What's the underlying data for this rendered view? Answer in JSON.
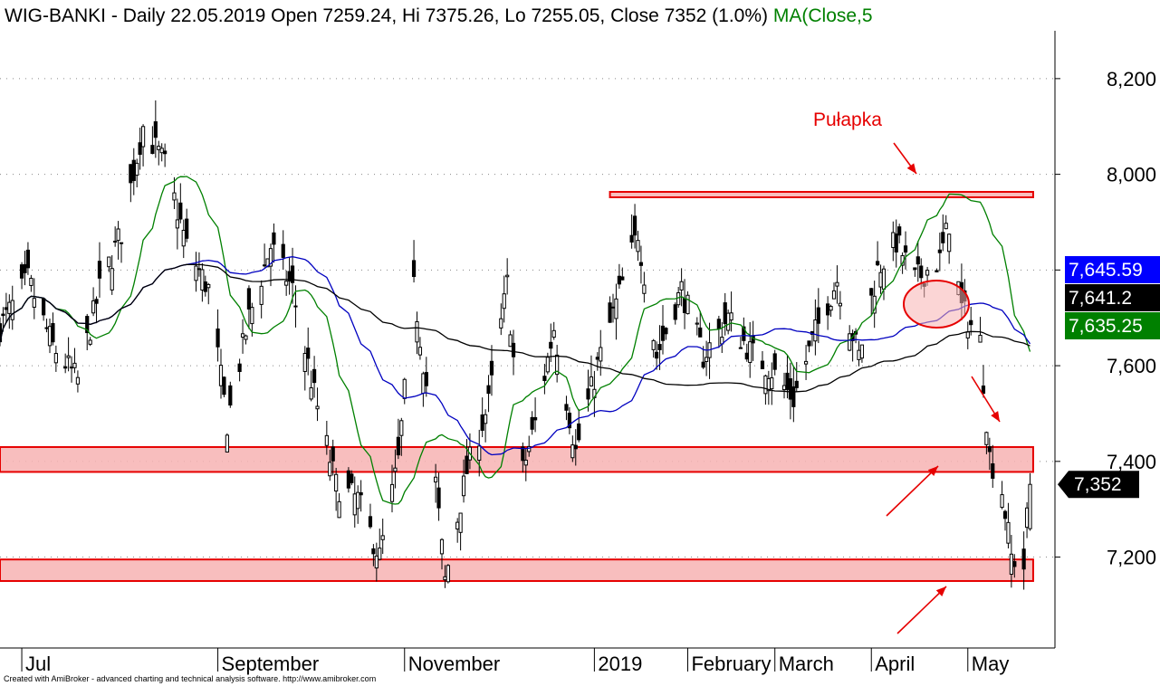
{
  "header": {
    "symbol": "WIG-BANKI",
    "sep1": " - ",
    "period": "Daily",
    "date": "22.05.2019",
    "open_label": "Open",
    "open": "7259.24",
    "hi_label": "Hi",
    "hi": "7375.26",
    "lo_label": "Lo",
    "lo": "7255.05",
    "close_label": "Close",
    "close": "7352",
    "change": "(1.0%)",
    "ma_label": "MA(Close,5"
  },
  "footer": "Created with AmiBroker - advanced charting and technical analysis software. http://www.amibroker.com",
  "colors": {
    "candle": "#000000",
    "ma_short": "#008000",
    "ma_mid": "#0000c0",
    "ma_long": "#000000",
    "zone_fill": "#f7b3b3",
    "zone_stroke": "#e60000",
    "arrow": "#e60000",
    "badge_blue": "#0000ff",
    "badge_black": "#000000",
    "badge_green": "#008000"
  },
  "badges": [
    {
      "label": "7,645.59",
      "value": 7645.59,
      "color": "#0000ff"
    },
    {
      "label": "7,641.2",
      "value": 7641.2,
      "color": "#000000"
    },
    {
      "label": "7,635.25",
      "value": 7635.25,
      "color": "#008000"
    },
    {
      "label": "7,352",
      "value": 7352,
      "color": "#000000"
    }
  ],
  "annotation": {
    "text": "Pułapka"
  },
  "zones": [
    {
      "name": "resistance",
      "from": 7900,
      "to": 7912,
      "start": "2019-01-07",
      "end": "2019-05-23"
    },
    {
      "name": "support-upper",
      "from": 7378,
      "to": 7430,
      "start": "2018-06-25",
      "end": "2019-05-23"
    },
    {
      "name": "support-lower",
      "from": 7150,
      "to": 7195,
      "start": "2018-06-25",
      "end": "2019-05-23"
    }
  ],
  "chart_data": {
    "type": "candlestick",
    "ylim": [
      7010,
      8300
    ],
    "y_ticks": [
      {
        "value": 7200,
        "label": "7,200"
      },
      {
        "value": 7400,
        "label": "7,400"
      },
      {
        "value": 7600,
        "label": "7,600"
      },
      {
        "value": 7800,
        "label": "7,800"
      },
      {
        "value": 8000,
        "label": "8,000"
      },
      {
        "value": 8200,
        "label": "8,200"
      }
    ],
    "x_range": [
      "2018-06-25",
      "2019-05-30"
    ],
    "x_ticks": [
      {
        "date": "2018-07-02",
        "label": "Jul"
      },
      {
        "date": "2018-09-03",
        "label": "September"
      },
      {
        "date": "2018-11-02",
        "label": "November"
      },
      {
        "date": "2019-01-02",
        "label": "2019"
      },
      {
        "date": "2019-02-01",
        "label": "February"
      },
      {
        "date": "2019-03-01",
        "label": "March"
      },
      {
        "date": "2019-04-01",
        "label": "April"
      },
      {
        "date": "2019-05-02",
        "label": "May"
      }
    ],
    "grid": "dotted-horizontal",
    "close_anchors": [
      [
        "2018-06-25",
        7680
      ],
      [
        "2018-07-04",
        7780
      ],
      [
        "2018-07-12",
        7640
      ],
      [
        "2018-07-20",
        7570
      ],
      [
        "2018-07-27",
        7760
      ],
      [
        "2018-08-03",
        7880
      ],
      [
        "2018-08-10",
        8100
      ],
      [
        "2018-08-17",
        8020
      ],
      [
        "2018-08-24",
        7850
      ],
      [
        "2018-08-31",
        7760
      ],
      [
        "2018-09-06",
        7480
      ],
      [
        "2018-09-13",
        7700
      ],
      [
        "2018-09-20",
        7850
      ],
      [
        "2018-09-27",
        7760
      ],
      [
        "2018-10-04",
        7540
      ],
      [
        "2018-10-11",
        7350
      ],
      [
        "2018-10-18",
        7320
      ],
      [
        "2018-10-25",
        7200
      ],
      [
        "2018-10-31",
        7400
      ],
      [
        "2018-11-05",
        7760
      ],
      [
        "2018-11-09",
        7560
      ],
      [
        "2018-11-15",
        7150
      ],
      [
        "2018-11-22",
        7380
      ],
      [
        "2018-11-29",
        7520
      ],
      [
        "2018-12-05",
        7770
      ],
      [
        "2018-12-10",
        7380
      ],
      [
        "2018-12-14",
        7480
      ],
      [
        "2018-12-20",
        7680
      ],
      [
        "2018-12-27",
        7420
      ],
      [
        "2019-01-03",
        7600
      ],
      [
        "2019-01-10",
        7750
      ],
      [
        "2019-01-16",
        7880
      ],
      [
        "2019-01-22",
        7620
      ],
      [
        "2019-01-30",
        7760
      ],
      [
        "2019-02-06",
        7620
      ],
      [
        "2019-02-14",
        7700
      ],
      [
        "2019-02-21",
        7630
      ],
      [
        "2019-02-28",
        7590
      ],
      [
        "2019-03-07",
        7530
      ],
      [
        "2019-03-14",
        7670
      ],
      [
        "2019-03-21",
        7780
      ],
      [
        "2019-03-28",
        7620
      ],
      [
        "2019-04-03",
        7800
      ],
      [
        "2019-04-09",
        7860
      ],
      [
        "2019-04-15",
        7780
      ],
      [
        "2019-04-23",
        7820
      ],
      [
        "2019-04-26",
        7900
      ],
      [
        "2019-04-30",
        7720
      ],
      [
        "2019-05-06",
        7650
      ],
      [
        "2019-05-09",
        7410
      ],
      [
        "2019-05-13",
        7340
      ],
      [
        "2019-05-16",
        7200
      ],
      [
        "2019-05-20",
        7180
      ],
      [
        "2019-05-21",
        7280
      ],
      [
        "2019-05-22",
        7352
      ]
    ],
    "last_bar": {
      "date": "2019-05-22",
      "open": 7259.24,
      "high": 7375.26,
      "low": 7255.05,
      "close": 7352
    },
    "series": [
      {
        "indicator": "MA",
        "line": "short",
        "color": "#008000",
        "last": 7635.25
      },
      {
        "indicator": "MA",
        "line": "mid",
        "color": "#0000c0",
        "last": 7645.59
      },
      {
        "indicator": "MA",
        "line": "long",
        "color": "#000000",
        "last": 7641.2
      }
    ]
  }
}
